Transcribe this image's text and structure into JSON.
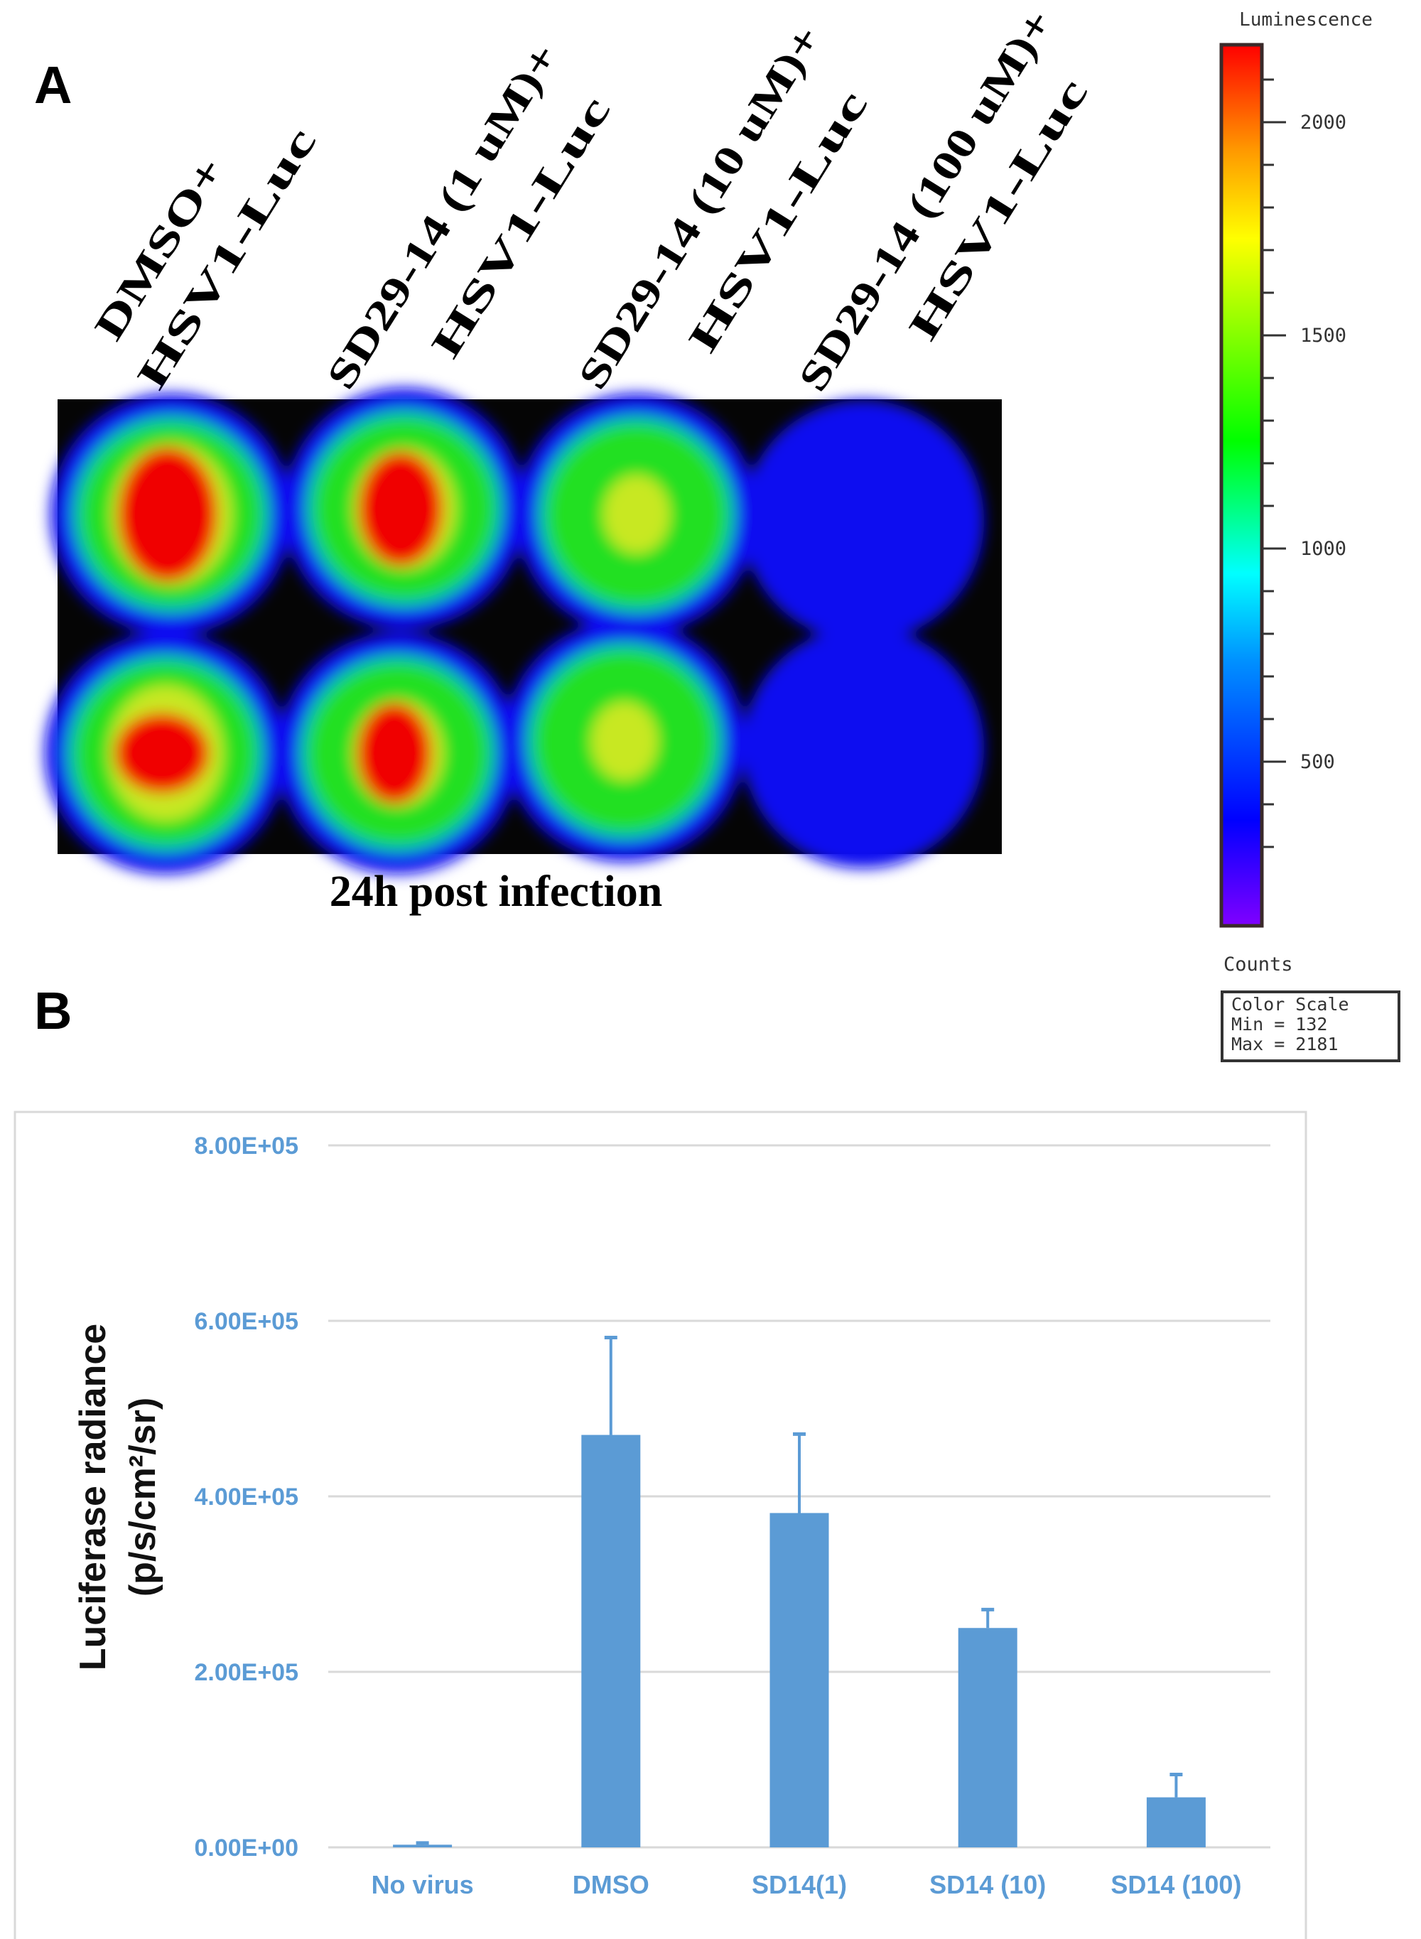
{
  "panel_a": {
    "label": "A",
    "conditions": [
      {
        "line1": "DMSO+",
        "line2": "HSV1-Luc"
      },
      {
        "line1": "SD29-14 (1 uM)+",
        "line2": "HSV1-Luc"
      },
      {
        "line1": "SD29-14 (10 uM)+",
        "line2": "HSV1-Luc"
      },
      {
        "line1": "SD29-14 (100 uM)+",
        "line2": "HSV1-Luc"
      }
    ],
    "caption": "24h post infection",
    "colorbar": {
      "title": "Luminescence",
      "ticks": [
        "2000",
        "1500",
        "1000",
        "500"
      ],
      "unit_label": "Counts",
      "scale_box": {
        "title": "Color Scale",
        "min": "Min = 132",
        "max": "Max = 2181"
      },
      "min": 132,
      "max": 2181,
      "colormap": "rainbow (violet-blue-cyan-green-yellow-red)"
    }
  },
  "panel_b": {
    "label": "B"
  },
  "chart_data": {
    "type": "bar",
    "categories": [
      "No virus",
      "DMSO",
      "SD14(1)",
      "SD14 (10)",
      "SD14 (100)"
    ],
    "values": [
      3000,
      470000,
      381000,
      250000,
      57000
    ],
    "error_upper": [
      5000,
      581000,
      471000,
      271000,
      83000
    ],
    "ylabel_line1": "Luciferase radiance",
    "ylabel_line2": "(p/s/cm²/sr)",
    "xlabel": "",
    "yticks": [
      "0.00E+00",
      "2.00E+05",
      "4.00E+05",
      "6.00E+05",
      "8.00E+05"
    ],
    "ylim": [
      0,
      800000
    ],
    "grid": true,
    "bar_color": "#5b9bd5",
    "tick_color": "#5b9bd5"
  }
}
